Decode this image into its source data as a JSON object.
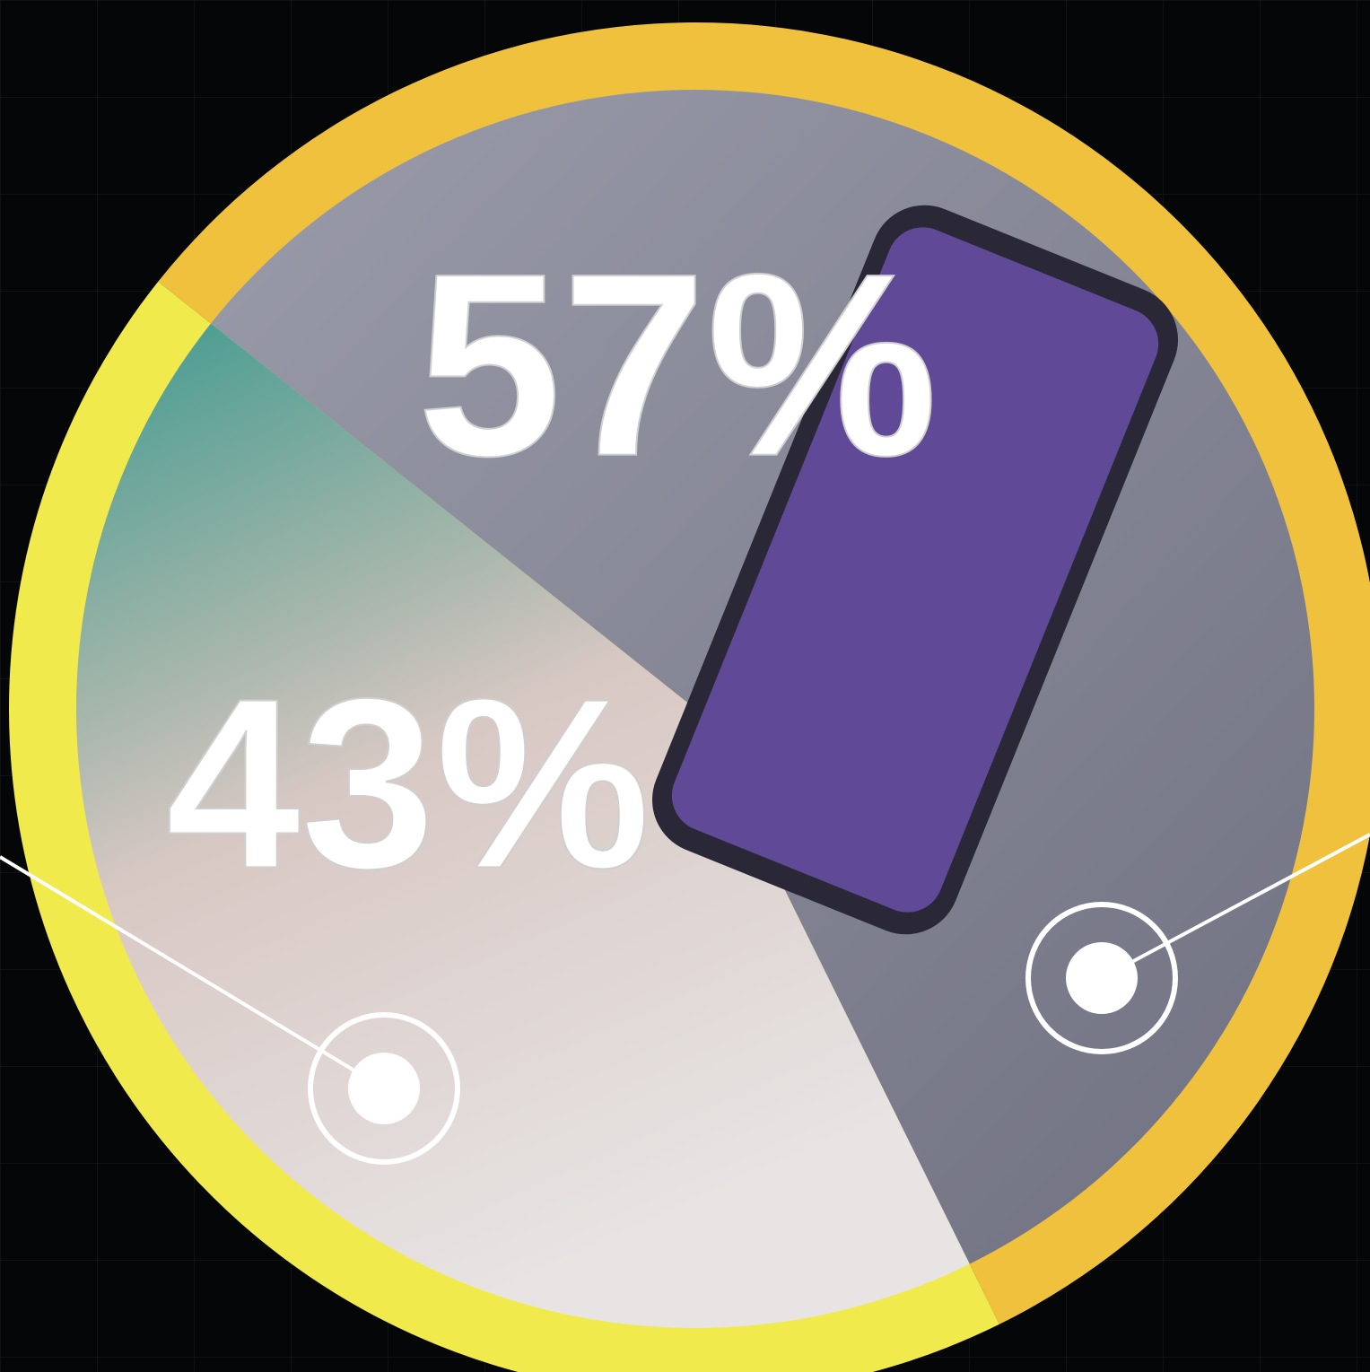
{
  "chart_data": {
    "type": "pie",
    "values": [
      57,
      43
    ],
    "value_labels": [
      "57%",
      "43%"
    ],
    "colors": [
      "#efc13d",
      "#f1ea4c"
    ]
  }
}
